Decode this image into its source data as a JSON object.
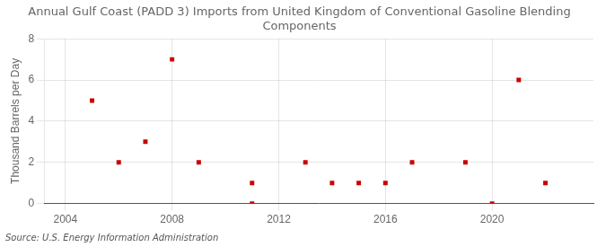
{
  "chart_data": {
    "type": "scatter",
    "title": "Annual Gulf Coast (PADD 3) Imports from United Kingdom of Conventional Gasoline Blending\nComponents",
    "y_label": "Thousand Barrels per Day",
    "annotation": "Source: U.S. Energy Information Administration",
    "series": [
      {
        "x": [
          2005,
          2006,
          2007,
          2008,
          2009,
          2011,
          2013,
          2014,
          2015,
          2016,
          2017,
          2019,
          2021,
          2022
        ],
        "values": [
          5,
          2,
          3,
          7,
          2,
          1,
          2,
          1,
          1,
          1,
          2,
          2,
          6,
          1
        ],
        "color": "#cc0000",
        "marker": "square"
      },
      {
        "x": [
          2011,
          2020
        ],
        "values": [
          0,
          0
        ],
        "color": "#cc0000",
        "marker": "square"
      }
    ],
    "xlim": [
      2003.2,
      2023.8
    ],
    "xticks": [
      2004,
      2008,
      2012,
      2016,
      2020
    ],
    "ylim": [
      0,
      8
    ],
    "yticks": [
      0,
      2,
      4,
      6,
      8
    ],
    "grid": true
  }
}
